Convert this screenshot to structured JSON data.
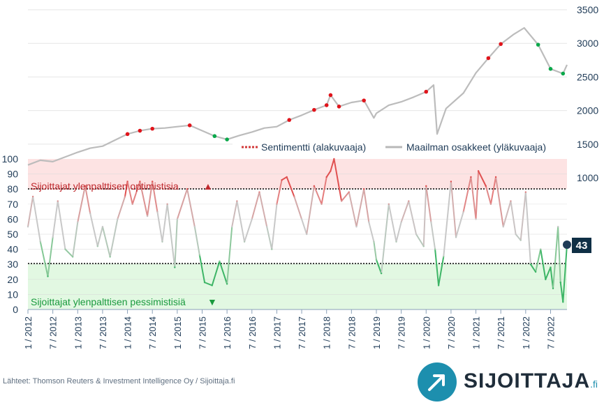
{
  "chart_data": {
    "type": "line",
    "upper_axis": {
      "ticks": [
        "1000",
        "1500",
        "2000",
        "2500",
        "3000",
        "3500"
      ],
      "range": [
        1000,
        3500
      ],
      "position": "right"
    },
    "lower_axis": {
      "ticks": [
        "0",
        "10",
        "20",
        "30",
        "40",
        "50",
        "60",
        "70",
        "80",
        "90",
        "100"
      ],
      "range": [
        0,
        100
      ],
      "position": "left"
    },
    "x_tick_labels": [
      "1 / 2012",
      "7 / 2012",
      "1 / 2013",
      "7 / 2013",
      "1 / 2014",
      "7 / 2014",
      "1 / 2015",
      "7 / 2015",
      "1 / 2016",
      "7 / 2016",
      "1 / 2017",
      "7 / 2017",
      "1 / 2018",
      "7 / 2018",
      "1 / 2019",
      "7 / 2019",
      "1 / 2020",
      "7 / 2020",
      "1 / 2021",
      "7 / 2021",
      "1 / 2022",
      "7 / 2022"
    ],
    "legend": {
      "position": "upper-right",
      "sentiment_label": "Sentimentti (alakuvaaja)",
      "world_label": "Maailman osakkeet (yläkuvaaja)"
    },
    "zones": {
      "optimistic_label": "Sijoittajat ylenpalttisen optimistisia",
      "pessimistic_label": "Sijoittajat ylenpalttisen pessimistisiä",
      "upper_threshold": 80,
      "lower_threshold": 31
    },
    "latest_value": "43",
    "series": [
      {
        "name": "Maailman osakkeet (yläkuvaaja)",
        "x": [
          2012.0,
          2012.25,
          2012.5,
          2012.75,
          2013.0,
          2013.25,
          2013.5,
          2013.75,
          2014.0,
          2014.25,
          2014.5,
          2014.75,
          2015.0,
          2015.25,
          2015.5,
          2015.75,
          2016.0,
          2016.25,
          2016.5,
          2016.75,
          2017.0,
          2017.25,
          2017.5,
          2017.75,
          2018.0,
          2018.08,
          2018.25,
          2018.5,
          2018.75,
          2018.95,
          2019.0,
          2019.25,
          2019.5,
          2019.75,
          2020.0,
          2020.15,
          2020.22,
          2020.4,
          2020.75,
          2021.0,
          2021.25,
          2021.5,
          2021.75,
          2021.97,
          2022.25,
          2022.5,
          2022.75,
          2022.83
        ],
        "values": [
          1190,
          1260,
          1240,
          1310,
          1380,
          1440,
          1470,
          1560,
          1650,
          1700,
          1730,
          1740,
          1760,
          1780,
          1700,
          1620,
          1570,
          1630,
          1680,
          1740,
          1760,
          1860,
          1930,
          2010,
          2080,
          2230,
          2060,
          2120,
          2150,
          1890,
          1960,
          2080,
          2130,
          2200,
          2280,
          2380,
          1650,
          2030,
          2260,
          2560,
          2780,
          2990,
          3130,
          3230,
          2980,
          2620,
          2550,
          2680
        ]
      },
      {
        "name": "Sentimentti (alakuvaaja)",
        "x": [
          2012.0,
          2012.1,
          2012.25,
          2012.4,
          2012.5,
          2012.6,
          2012.75,
          2012.9,
          2013.0,
          2013.15,
          2013.25,
          2013.4,
          2013.5,
          2013.65,
          2013.8,
          2013.95,
          2014.0,
          2014.1,
          2014.25,
          2014.4,
          2014.5,
          2014.6,
          2014.7,
          2014.8,
          2014.95,
          2015.0,
          2015.2,
          2015.35,
          2015.45,
          2015.55,
          2015.7,
          2015.85,
          2016.0,
          2016.1,
          2016.2,
          2016.35,
          2016.5,
          2016.65,
          2016.8,
          2016.9,
          2017.0,
          2017.1,
          2017.2,
          2017.35,
          2017.5,
          2017.6,
          2017.75,
          2017.9,
          2018.0,
          2018.08,
          2018.15,
          2018.3,
          2018.45,
          2018.6,
          2018.75,
          2018.85,
          2018.95,
          2019.0,
          2019.1,
          2019.25,
          2019.4,
          2019.5,
          2019.65,
          2019.8,
          2019.95,
          2020.0,
          2020.1,
          2020.18,
          2020.25,
          2020.35,
          2020.5,
          2020.6,
          2020.75,
          2020.9,
          2021.0,
          2021.05,
          2021.2,
          2021.3,
          2021.4,
          2021.55,
          2021.7,
          2021.8,
          2021.9,
          2022.0,
          2022.1,
          2022.2,
          2022.3,
          2022.4,
          2022.5,
          2022.55,
          2022.65,
          2022.7,
          2022.75,
          2022.83
        ],
        "values": [
          55,
          75,
          45,
          22,
          48,
          72,
          40,
          35,
          58,
          82,
          64,
          42,
          55,
          35,
          60,
          75,
          85,
          70,
          85,
          62,
          85,
          65,
          45,
          70,
          28,
          60,
          80,
          55,
          36,
          18,
          16,
          32,
          17,
          55,
          72,
          45,
          60,
          78,
          55,
          40,
          70,
          86,
          88,
          75,
          60,
          50,
          82,
          70,
          88,
          92,
          100,
          72,
          78,
          55,
          80,
          58,
          45,
          33,
          24,
          70,
          45,
          58,
          72,
          50,
          42,
          82,
          58,
          40,
          16,
          35,
          85,
          48,
          65,
          88,
          60,
          92,
          82,
          70,
          88,
          55,
          72,
          50,
          46,
          78,
          30,
          25,
          40,
          20,
          28,
          14,
          55,
          18,
          5,
          43
        ]
      }
    ]
  },
  "footer": {
    "source": "Lähteet: Thomson Reuters & Investment Intelligence Oy / Sijoittaja.fi",
    "brand": "SIJOITTAJA",
    "brand_suffix": ".fi"
  }
}
